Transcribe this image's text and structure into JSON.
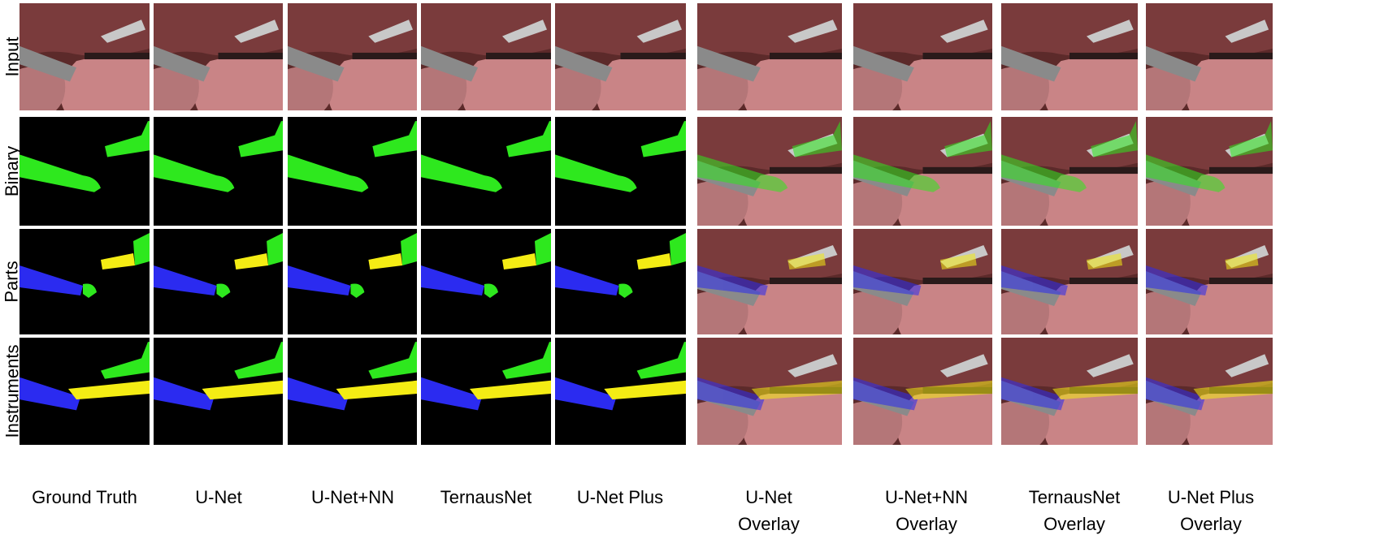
{
  "rows": [
    "Input",
    "Binary",
    "Parts",
    "Instruments"
  ],
  "columns": [
    {
      "line1": "Ground Truth",
      "line2": ""
    },
    {
      "line1": "U-Net",
      "line2": ""
    },
    {
      "line1": "U-Net+NN",
      "line2": ""
    },
    {
      "line1": "TernausNet",
      "line2": ""
    },
    {
      "line1": "U-Net Plus",
      "line2": ""
    },
    {
      "line1": "U-Net",
      "line2": "Overlay"
    },
    {
      "line1": "U-Net+NN",
      "line2": "Overlay"
    },
    {
      "line1": "TernausNet",
      "line2": "Overlay"
    },
    {
      "line1": "U-Net Plus",
      "line2": "Overlay"
    }
  ],
  "colors": {
    "tool": "#2ee81e",
    "shaft": "#2b2bf0",
    "wrist": "#2ee81e",
    "clasper": "#f4ec14",
    "tissue": "#c9827f",
    "background": "#000000"
  }
}
